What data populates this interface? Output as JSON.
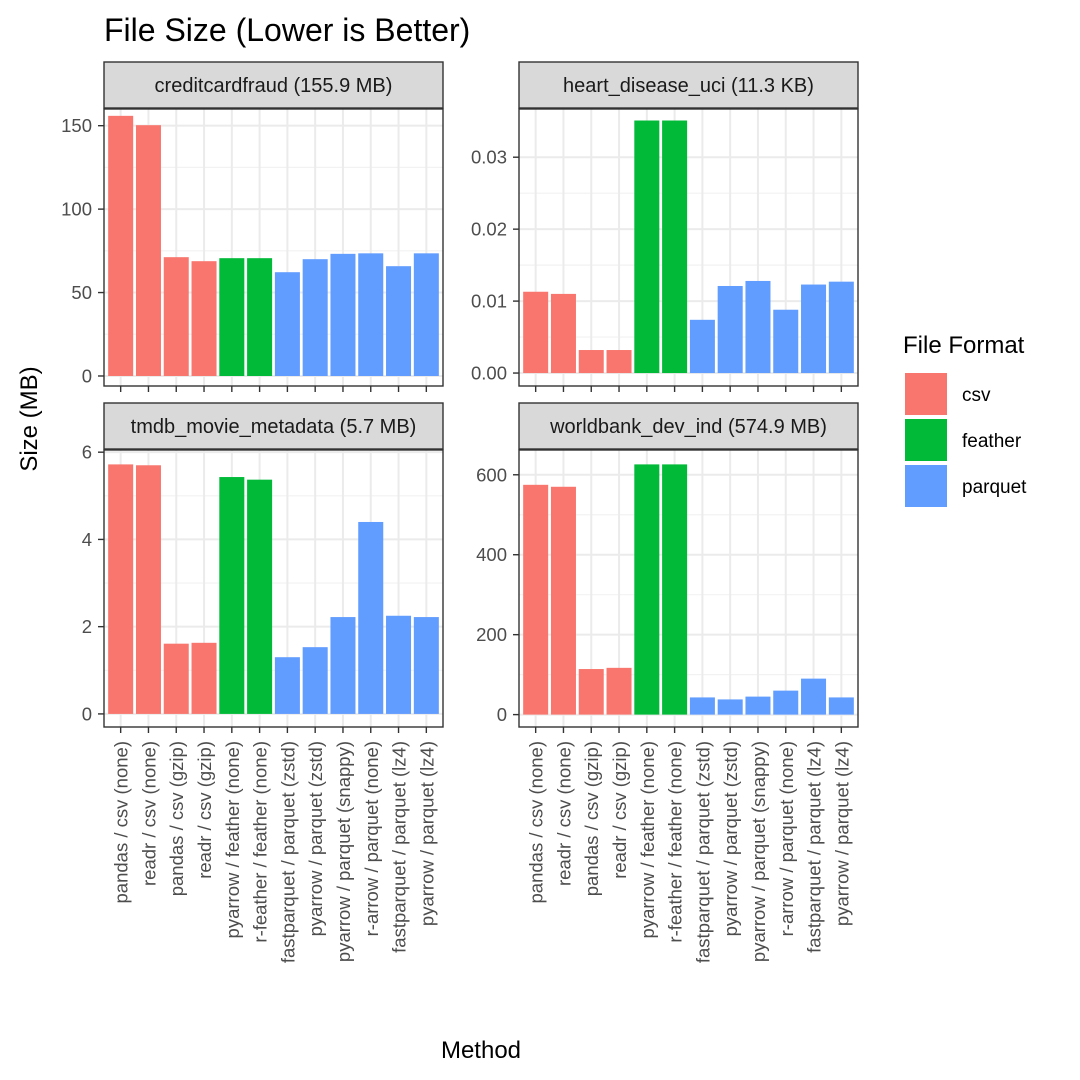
{
  "chart_data": {
    "type": "bar",
    "title": "File Size (Lower is Better)",
    "xlabel": "Method",
    "ylabel": "Size (MB)",
    "grid": true,
    "legend_title": "File Format",
    "legend_position": "right",
    "legend": [
      {
        "name": "csv",
        "color": "#F8766D"
      },
      {
        "name": "feather",
        "color": "#00BA38"
      },
      {
        "name": "parquet",
        "color": "#619CFF"
      }
    ],
    "categories": [
      "pandas / csv (none)",
      "readr / csv (none)",
      "pandas / csv (gzip)",
      "readr / csv (gzip)",
      "pyarrow / feather (none)",
      "r-feather / feather (none)",
      "fastparquet / parquet (zstd)",
      "pyarrow / parquet (zstd)",
      "pyarrow / parquet (snappy)",
      "r-arrow / parquet (none)",
      "fastparquet / parquet (lz4)",
      "pyarrow / parquet (lz4)"
    ],
    "formats": [
      "csv",
      "csv",
      "csv",
      "csv",
      "feather",
      "feather",
      "parquet",
      "parquet",
      "parquet",
      "parquet",
      "parquet",
      "parquet"
    ],
    "panels": [
      {
        "label": "creditcardfraud (155.9 MB)",
        "ylim": [
          -6,
          160
        ],
        "yticks": [
          0,
          50,
          100,
          150
        ],
        "ytick_labels": [
          "0",
          "50",
          "100",
          "150"
        ],
        "values": [
          155.9,
          150.3,
          71.2,
          68.8,
          70.6,
          70.6,
          62.2,
          70.0,
          73.2,
          73.5,
          65.8,
          73.5
        ]
      },
      {
        "label": "heart_disease_uci (11.3 KB)",
        "ylim": [
          -0.0018,
          0.0367
        ],
        "yticks": [
          0,
          0.01,
          0.02,
          0.03
        ],
        "ytick_labels": [
          "0.00",
          "0.01",
          "0.02",
          "0.03"
        ],
        "values": [
          0.0113,
          0.011,
          0.0032,
          0.0032,
          0.0351,
          0.0351,
          0.0074,
          0.0121,
          0.0128,
          0.0088,
          0.0123,
          0.0127
        ]
      },
      {
        "label": "tmdb_movie_metadata (5.7 MB)",
        "ylim": [
          -0.3,
          6.05
        ],
        "yticks": [
          0,
          2,
          4,
          6
        ],
        "ytick_labels": [
          "0",
          "2",
          "4",
          "6"
        ],
        "values": [
          5.72,
          5.7,
          1.61,
          1.63,
          5.43,
          5.37,
          1.3,
          1.53,
          2.22,
          4.4,
          2.25,
          2.22
        ]
      },
      {
        "label": "worldbank_dev_ind (574.9 MB)",
        "ylim": [
          -31,
          662
        ],
        "yticks": [
          0,
          200,
          400,
          600
        ],
        "ytick_labels": [
          "0",
          "200",
          "400",
          "600"
        ],
        "values": [
          574.9,
          570.0,
          114.0,
          117.0,
          626.0,
          626.0,
          43.0,
          38.0,
          45.0,
          60.0,
          90.0,
          43.0
        ]
      }
    ]
  }
}
